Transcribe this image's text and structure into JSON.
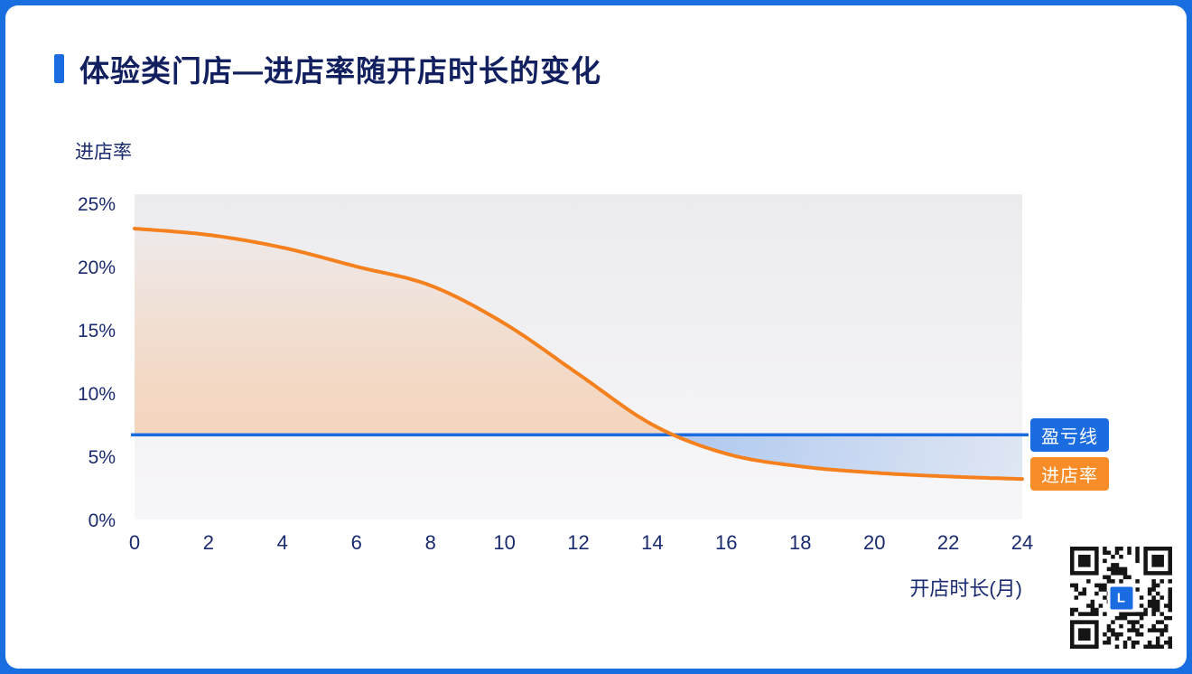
{
  "header": {
    "title": "体验类门店—进店率随开店时长的变化"
  },
  "axes": {
    "y_label": "进店率",
    "x_label": "开店时长(月)"
  },
  "legend": {
    "breakeven": "盈亏线",
    "series": "进店率"
  },
  "qr": {
    "logo_letter": "L"
  },
  "colors": {
    "page_bg": "#1a6fe0",
    "navy_text": "#1a2a6e",
    "accent_blue": "#1b6ce0",
    "line_orange": "#f5801e",
    "badge_orange": "#f78c28",
    "plot_bg": "#f1f0f3"
  },
  "chart_data": {
    "type": "line",
    "title": "体验类门店—进店率随开店时长的变化",
    "xlabel": "开店时长(月)",
    "ylabel": "进店率",
    "x": [
      0,
      2,
      4,
      6,
      8,
      10,
      12,
      14,
      16,
      18,
      20,
      22,
      24
    ],
    "series": [
      {
        "name": "进店率",
        "color": "#f5801e",
        "values": [
          23,
          22.5,
          21.5,
          20,
          18.5,
          15.5,
          11.5,
          7.5,
          5.2,
          4.2,
          3.7,
          3.4,
          3.2
        ]
      },
      {
        "name": "盈亏线",
        "color": "#1b6ce0",
        "values": [
          6.7,
          6.7,
          6.7,
          6.7,
          6.7,
          6.7,
          6.7,
          6.7,
          6.7,
          6.7,
          6.7,
          6.7,
          6.7
        ]
      }
    ],
    "breakeven_value": 6.7,
    "xlim": [
      0,
      24
    ],
    "ylim": [
      0,
      25
    ],
    "x_ticks": [
      0,
      2,
      4,
      6,
      8,
      10,
      12,
      14,
      16,
      18,
      20,
      22,
      24
    ],
    "y_ticks": [
      0,
      5,
      10,
      15,
      20,
      25
    ],
    "y_tick_suffix": "%",
    "grid": false,
    "legend_position": "right-outside"
  }
}
